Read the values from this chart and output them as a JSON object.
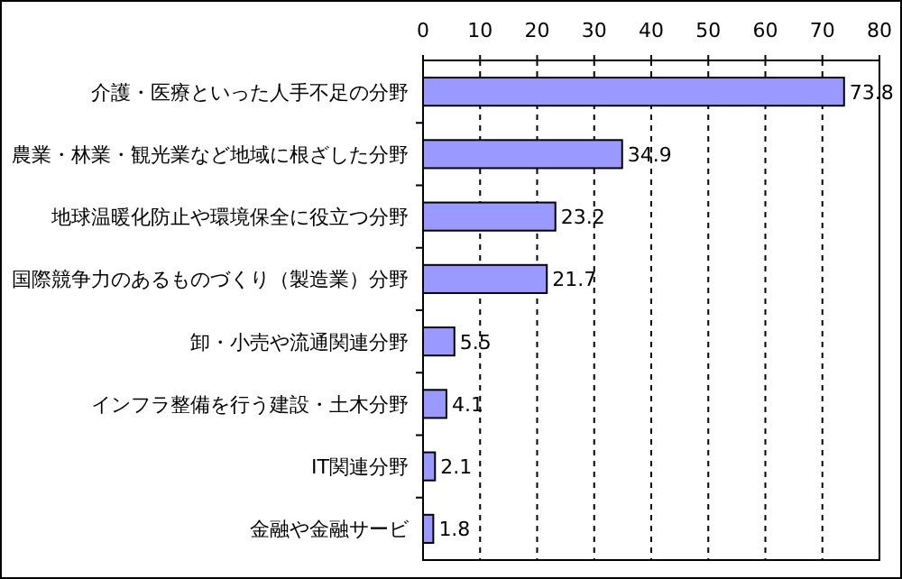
{
  "chart_data": {
    "type": "bar",
    "orientation": "horizontal",
    "categories": [
      "介護・医療といった人手不足の分野",
      "農業・林業・観光業など地域に根ざした分野",
      "地球温暖化防止や環境保全に役立つ分野",
      "国際競争力のあるものづくり（製造業）分野",
      "卸・小売や流通関連分野",
      "インフラ整備を行う建設・土木分野",
      "IT関連分野",
      "金融や金融サービ"
    ],
    "values": [
      73.8,
      34.9,
      23.2,
      21.7,
      5.5,
      4.1,
      2.1,
      1.8
    ],
    "color": "#9999ff",
    "xlim": [
      0,
      80
    ],
    "xticks": [
      0,
      10,
      20,
      30,
      40,
      50,
      60,
      70,
      80
    ],
    "data_labels": true,
    "grid": "x"
  }
}
